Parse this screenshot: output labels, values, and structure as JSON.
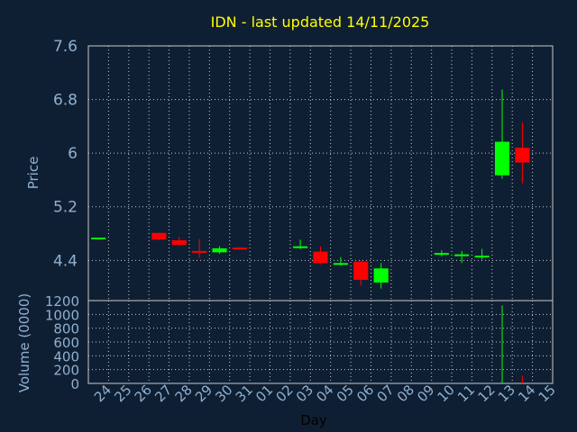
{
  "chart_data": [
    {
      "type": "candlestick",
      "title": "IDN - last updated 14/11/2025",
      "ylabel": "Price",
      "ylim": [
        3.8,
        7.6
      ],
      "yticks": [
        "7.6",
        "6.8",
        "6",
        "5.2",
        "4.4"
      ],
      "grid": true,
      "colors": {
        "up": "#00ff00",
        "down": "#ff0000"
      },
      "candles": [
        {
          "day": "24",
          "open": 4.73,
          "high": 4.74,
          "low": 4.72,
          "close": 4.74
        },
        {
          "day": "27",
          "open": 4.81,
          "high": 4.81,
          "low": 4.7,
          "close": 4.71
        },
        {
          "day": "28",
          "open": 4.7,
          "high": 4.75,
          "low": 4.62,
          "close": 4.63
        },
        {
          "day": "29",
          "open": 4.54,
          "high": 4.72,
          "low": 4.44,
          "close": 4.52
        },
        {
          "day": "30",
          "open": 4.52,
          "high": 4.61,
          "low": 4.5,
          "close": 4.58
        },
        {
          "day": "31",
          "open": 4.59,
          "high": 4.6,
          "low": 4.58,
          "close": 4.58
        },
        {
          "day": "03",
          "open": 4.59,
          "high": 4.71,
          "low": 4.57,
          "close": 4.61
        },
        {
          "day": "04",
          "open": 4.53,
          "high": 4.61,
          "low": 4.34,
          "close": 4.36
        },
        {
          "day": "05",
          "open": 4.35,
          "high": 4.45,
          "low": 4.32,
          "close": 4.36
        },
        {
          "day": "06",
          "open": 4.38,
          "high": 4.4,
          "low": 4.02,
          "close": 4.11
        },
        {
          "day": "07",
          "open": 4.07,
          "high": 4.36,
          "low": 3.98,
          "close": 4.28
        },
        {
          "day": "10",
          "open": 4.49,
          "high": 4.55,
          "low": 4.46,
          "close": 4.51
        },
        {
          "day": "11",
          "open": 4.48,
          "high": 4.54,
          "low": 4.36,
          "close": 4.49
        },
        {
          "day": "12",
          "open": 4.45,
          "high": 4.57,
          "low": 4.41,
          "close": 4.47
        },
        {
          "day": "13",
          "open": 5.67,
          "high": 6.95,
          "low": 5.62,
          "close": 6.17
        },
        {
          "day": "14",
          "open": 6.08,
          "high": 6.46,
          "low": 5.55,
          "close": 5.86
        }
      ]
    },
    {
      "type": "bar",
      "ylabel": "Volume (0000)",
      "xlabel": "Day",
      "ylim": [
        0,
        1200
      ],
      "yticks": [
        "1200",
        "1000",
        "800",
        "600",
        "400",
        "200",
        "0"
      ],
      "categories": [
        "24",
        "25",
        "26",
        "27",
        "28",
        "29",
        "30",
        "31",
        "01",
        "02",
        "03",
        "04",
        "05",
        "06",
        "07",
        "08",
        "09",
        "10",
        "11",
        "12",
        "13",
        "14",
        "15"
      ],
      "series": [
        {
          "day": "13",
          "value": 1130,
          "color": "#00ff00"
        },
        {
          "day": "14",
          "value": 110,
          "color": "#ff0000"
        }
      ]
    }
  ]
}
